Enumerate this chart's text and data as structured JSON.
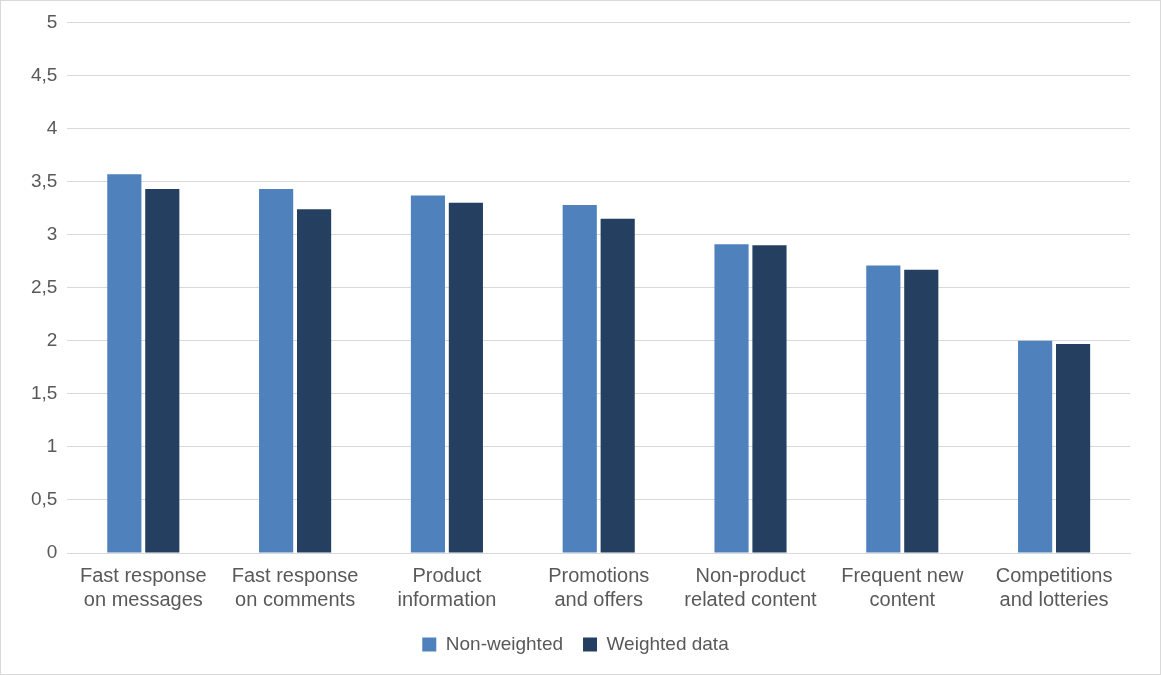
{
  "chart_data": {
    "type": "bar",
    "categories": [
      "Fast response on messages",
      "Fast response on comments",
      "Product information",
      "Promotions and offers",
      "Non-product related content",
      "Frequent new content",
      "Competitions and lotteries"
    ],
    "series": [
      {
        "name": "Non-weighted",
        "color": "#4f81bd",
        "values": [
          3.57,
          3.43,
          3.37,
          3.28,
          2.91,
          2.71,
          2.0
        ]
      },
      {
        "name": "Weighted data",
        "color": "#243f60",
        "values": [
          3.43,
          3.24,
          3.3,
          3.15,
          2.9,
          2.67,
          1.97
        ]
      }
    ],
    "ylim": [
      0,
      5
    ],
    "yticks": [
      0,
      {
        "value": 0.5,
        "label": "0,5"
      },
      1,
      {
        "value": 1.5,
        "label": "1,5"
      },
      2,
      {
        "value": 2.5,
        "label": "2,5"
      },
      3,
      {
        "value": 3.5,
        "label": "3,5"
      },
      4,
      {
        "value": 4.5,
        "label": "4,5"
      },
      5
    ],
    "grid": "y",
    "legend": "bottom"
  }
}
